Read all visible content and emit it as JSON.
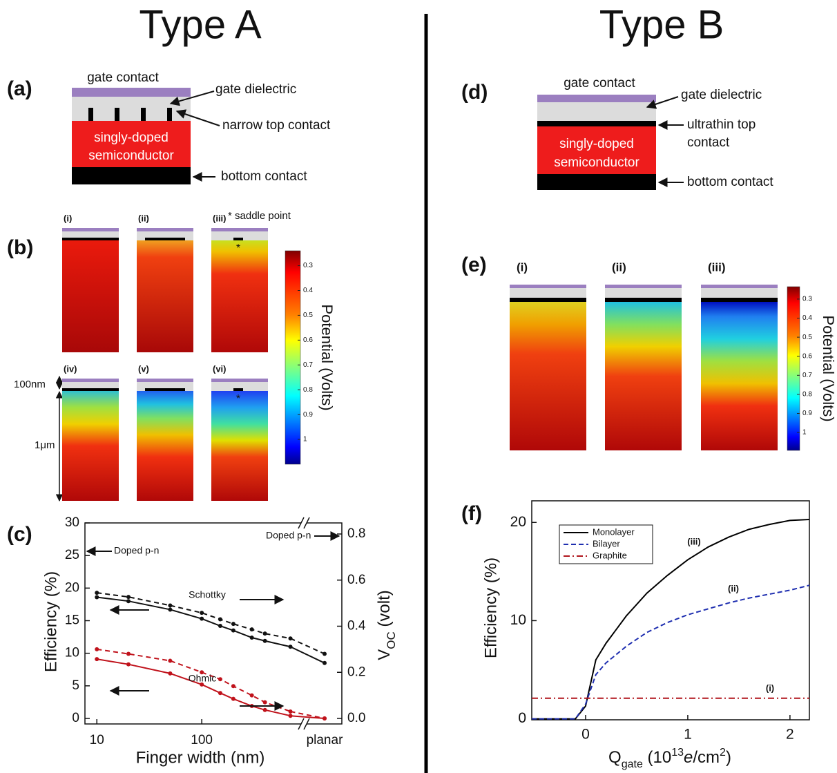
{
  "columns": [
    {
      "title": "Type A"
    },
    {
      "title": "Type B"
    }
  ],
  "diagram_a": {
    "label": "(a)",
    "gate": "gate contact",
    "dielectric": "gate dielectric",
    "top_contact": "narrow top contact",
    "semiconductor": [
      "singly-doped",
      "semiconductor"
    ],
    "bottom": "bottom contact"
  },
  "maps_b": {
    "label": "(b)",
    "note": "* saddle point",
    "saddle_mark": "*",
    "panels": [
      "(i)",
      "(ii)",
      "(iii)",
      "(iv)",
      "(v)",
      "(vi)"
    ],
    "thickness": [
      "100nm",
      "1μm"
    ],
    "colorbar": {
      "label": "Potential (Volts)",
      "lim": [
        0.24,
        1.1
      ],
      "ticks": [
        0.3,
        0.4,
        0.5,
        0.6,
        0.7,
        0.8,
        0.9,
        1
      ]
    }
  },
  "diagram_d": {
    "label": "(d)",
    "gate": "gate contact",
    "dielectric": "gate dielectric",
    "top_contact": [
      "ultrathin top",
      "contact"
    ],
    "semiconductor": [
      "singly-doped",
      "semiconductor"
    ],
    "bottom": "bottom contact"
  },
  "maps_e": {
    "label": "(e)",
    "panels": [
      "(i)",
      "(ii)",
      "(iii)"
    ],
    "colorbar": {
      "label": "Potential (Volts)",
      "lim": [
        0.235,
        1.094
      ],
      "ticks": [
        0.3,
        0.4,
        0.5,
        0.6,
        0.7,
        0.8,
        0.9,
        1
      ]
    }
  },
  "chart_data": [
    {
      "type": "line",
      "panel_label": "(c)",
      "xlabel": "Finger width (nm)",
      "ylabel": "Efficiency (%)",
      "y2label": [
        "V",
        "OC",
        " (volt)"
      ],
      "xlog": true,
      "x": [
        10,
        20,
        50,
        100,
        150,
        200,
        300,
        400,
        700
      ],
      "xlim": [
        7.7,
        940
      ],
      "xticks": [
        10,
        100
      ],
      "break_label": "planar",
      "ylim": [
        -0.85,
        30
      ],
      "yticks": [
        0,
        5,
        10,
        15,
        20,
        25,
        30
      ],
      "y2lim": [
        -0.024,
        0.848
      ],
      "y2ticks": [
        {
          "value": 0,
          "label": "0.0"
        },
        0.2,
        0.4,
        0.6,
        0.8
      ],
      "series": [
        {
          "color": "#111111",
          "dash": false,
          "axis": "y",
          "values": [
            18.6,
            18.0,
            16.7,
            15.3,
            14.2,
            13.5,
            12.4,
            11.9,
            11.0
          ],
          "planar_value": 8.5
        },
        {
          "color": "#111111",
          "dash": true,
          "axis": "y2",
          "values": [
            0.545,
            0.527,
            0.49,
            0.458,
            0.43,
            0.41,
            0.386,
            0.368,
            0.347
          ],
          "planar_value": 0.28
        },
        {
          "color": "#c0121b",
          "dash": false,
          "axis": "y",
          "values": [
            9.1,
            8.3,
            6.9,
            5.2,
            3.9,
            3.0,
            1.9,
            1.3,
            0.4
          ],
          "planar_value": 0
        },
        {
          "color": "#c0121b",
          "dash": true,
          "axis": "y2",
          "values": [
            0.3,
            0.28,
            0.25,
            0.2,
            0.17,
            0.14,
            0.1,
            0.07,
            0.03
          ],
          "planar_value": 0.0
        }
      ],
      "annotations": [
        "Schottky",
        "Ohmic",
        "Doped p-n",
        "Doped p-n"
      ]
    },
    {
      "type": "line",
      "panel_label": "(f)",
      "xlabel": [
        "Q",
        "gate",
        " (10",
        "13",
        "e",
        "/cm",
        "2",
        ")"
      ],
      "ylabel": "Efficiency (%)",
      "xlim": [
        -0.527,
        2.19
      ],
      "xticks": [
        0,
        1,
        2
      ],
      "ylim": [
        -0.1,
        22.2
      ],
      "yticks": [
        0,
        10,
        20
      ],
      "legend": "upper left",
      "series": [
        {
          "name": "Monolayer",
          "color": "#000000",
          "dash": "none",
          "x": [
            -0.527,
            -0.1,
            0,
            0.1,
            0.2,
            0.4,
            0.6,
            0.8,
            1.0,
            1.2,
            1.4,
            1.6,
            1.8,
            2.0,
            2.19
          ],
          "values": [
            0,
            0,
            1.3,
            6,
            7.7,
            10.5,
            12.8,
            14.6,
            16.2,
            17.5,
            18.5,
            19.3,
            19.8,
            20.2,
            20.3
          ]
        },
        {
          "name": "Bilayer",
          "color": "#1f2fb0",
          "dash": "dash",
          "x": [
            -0.527,
            -0.1,
            0,
            0.1,
            0.2,
            0.4,
            0.6,
            0.8,
            1.0,
            1.2,
            1.4,
            1.6,
            1.8,
            2.0,
            2.19
          ],
          "values": [
            0,
            0,
            1.5,
            4.5,
            5.7,
            7.4,
            8.8,
            9.8,
            10.6,
            11.2,
            11.8,
            12.3,
            12.7,
            13.1,
            13.6
          ]
        },
        {
          "name": "Graphite",
          "color": "#b0141b",
          "dash": "dashdot",
          "x": [
            -0.527,
            2.19
          ],
          "values": [
            2.1,
            2.1
          ]
        }
      ],
      "annotations": [
        "(iii)",
        "(ii)",
        "(i)"
      ]
    }
  ]
}
